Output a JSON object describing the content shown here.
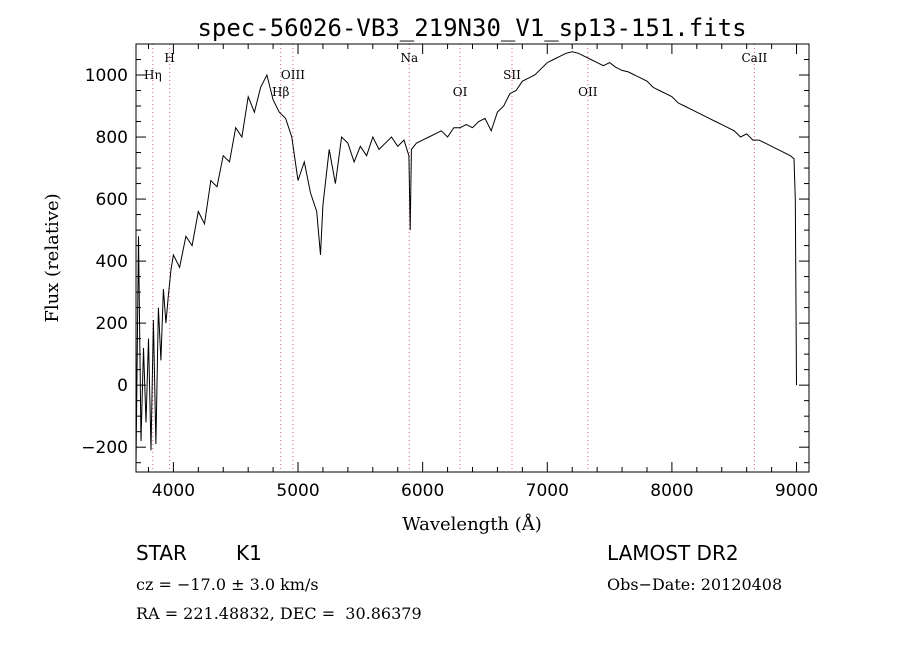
{
  "chart_data": {
    "type": "line",
    "title": "spec-56026-VB3_219N30_V1_sp13-151.fits",
    "xlabel": "Wavelength (Å)",
    "ylabel": "Flux (relative)",
    "xlim": [
      3700,
      9100
    ],
    "ylim": [
      -280,
      1100
    ],
    "x_ticks": [
      4000,
      5000,
      6000,
      7000,
      8000,
      9000
    ],
    "y_ticks": [
      -200,
      0,
      200,
      400,
      600,
      800,
      1000
    ],
    "grid": false,
    "series": [
      {
        "x": [
          3700,
          3720,
          3740,
          3760,
          3780,
          3800,
          3820,
          3840,
          3860,
          3880,
          3900,
          3920,
          3940,
          3960,
          3980,
          4000,
          4050,
          4100,
          4150,
          4200,
          4250,
          4300,
          4350,
          4400,
          4450,
          4500,
          4550,
          4600,
          4650,
          4700,
          4750,
          4800,
          4850,
          4900,
          4950,
          5000,
          5050,
          5100,
          5150,
          5180,
          5200,
          5250,
          5300,
          5350,
          5400,
          5450,
          5500,
          5550,
          5600,
          5650,
          5700,
          5750,
          5800,
          5850,
          5890,
          5900,
          5910,
          5950,
          6000,
          6050,
          6100,
          6150,
          6200,
          6250,
          6300,
          6350,
          6400,
          6450,
          6500,
          6550,
          6600,
          6650,
          6700,
          6750,
          6800,
          6850,
          6900,
          6950,
          7000,
          7050,
          7100,
          7150,
          7200,
          7250,
          7300,
          7350,
          7400,
          7450,
          7500,
          7550,
          7600,
          7650,
          7700,
          7750,
          7800,
          7850,
          7900,
          7950,
          8000,
          8050,
          8100,
          8150,
          8200,
          8250,
          8300,
          8350,
          8400,
          8450,
          8500,
          8550,
          8600,
          8650,
          8700,
          8750,
          8800,
          8850,
          8900,
          8950,
          8980,
          8990,
          9000
        ],
        "y": [
          -260,
          480,
          -180,
          120,
          -120,
          150,
          -210,
          210,
          -190,
          250,
          80,
          310,
          200,
          290,
          370,
          420,
          380,
          480,
          450,
          560,
          520,
          660,
          640,
          740,
          720,
          830,
          800,
          930,
          880,
          960,
          1000,
          920,
          880,
          860,
          800,
          660,
          720,
          620,
          560,
          420,
          580,
          760,
          650,
          800,
          780,
          720,
          770,
          740,
          800,
          760,
          780,
          800,
          770,
          790,
          740,
          500,
          760,
          780,
          790,
          800,
          810,
          820,
          800,
          830,
          830,
          840,
          830,
          850,
          860,
          820,
          880,
          900,
          940,
          950,
          980,
          990,
          1000,
          1020,
          1040,
          1050,
          1060,
          1070,
          1075,
          1070,
          1060,
          1050,
          1040,
          1030,
          1040,
          1025,
          1015,
          1010,
          1000,
          990,
          980,
          960,
          950,
          940,
          930,
          910,
          900,
          890,
          880,
          870,
          860,
          850,
          840,
          830,
          820,
          800,
          810,
          790,
          790,
          780,
          770,
          760,
          750,
          740,
          730,
          600,
          0
        ]
      }
    ],
    "line_markers": [
      {
        "label": "H",
        "wavelength": 3970,
        "row": 1
      },
      {
        "label": "Hη",
        "wavelength": 3835,
        "row": 2
      },
      {
        "label": "OIII",
        "wavelength": 4959,
        "row": 2
      },
      {
        "label": "Hβ",
        "wavelength": 4861,
        "row": 3
      },
      {
        "label": "Na",
        "wavelength": 5893,
        "row": 1
      },
      {
        "label": "OI",
        "wavelength": 6300,
        "row": 3
      },
      {
        "label": "SII",
        "wavelength": 6717,
        "row": 2
      },
      {
        "label": "OII",
        "wavelength": 7325,
        "row": 3
      },
      {
        "label": "CaII",
        "wavelength": 8662,
        "row": 1
      }
    ],
    "marker_color": "#e06060"
  },
  "info": {
    "object_class": "STAR",
    "subclass": "K1",
    "survey": "LAMOST DR2",
    "redshift": "cz = −17.0 ± 3.0 km/s",
    "obs_date": "Obs−Date: 20120408",
    "coords": "RA = 221.48832, DEC =  30.86379"
  }
}
